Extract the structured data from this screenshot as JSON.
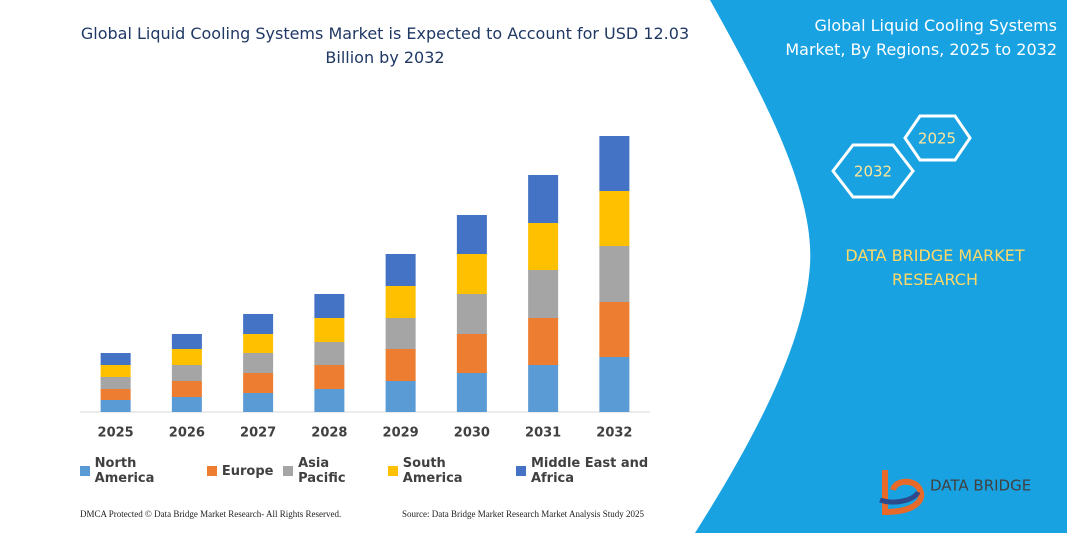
{
  "chart_data": {
    "type": "stacked_bar",
    "title": "Global Liquid Cooling Systems Market is Expected to Account for USD 12.03 Billion by 2032",
    "categories": [
      "2025",
      "2026",
      "2027",
      "2028",
      "2029",
      "2030",
      "2031",
      "2032"
    ],
    "series": [
      {
        "name": "North America",
        "color": "#5b9bd5",
        "values": [
          12,
          15,
          19,
          23,
          31,
          39,
          47,
          55
        ]
      },
      {
        "name": "Europe",
        "color": "#ed7d31",
        "values": [
          11,
          16,
          20,
          24,
          32,
          39,
          47,
          55
        ]
      },
      {
        "name": "Asia Pacific",
        "color": "#a5a5a5",
        "values": [
          12,
          16,
          20,
          23,
          31,
          40,
          48,
          56
        ]
      },
      {
        "name": "South America",
        "color": "#ffc000",
        "values": [
          12,
          16,
          19,
          24,
          32,
          40,
          47,
          55
        ]
      },
      {
        "name": "Middle East and Africa",
        "color": "#4472c4",
        "values": [
          12,
          15,
          20,
          24,
          32,
          39,
          48,
          55
        ]
      }
    ]
  },
  "panel": {
    "title": "Global Liquid Cooling Systems Market, By Regions, 2025 to 2032",
    "hexagons": [
      "2025",
      "2032"
    ],
    "brand": "DATA BRIDGE MARKET RESEARCH",
    "logo": "DATA BRIDGE"
  },
  "footer": {
    "left": "DMCA Protected © Data Bridge Market Research-  All Rights Reserved.",
    "right": "Source: Data Bridge Market Research  Market Analysis Study 2025"
  }
}
